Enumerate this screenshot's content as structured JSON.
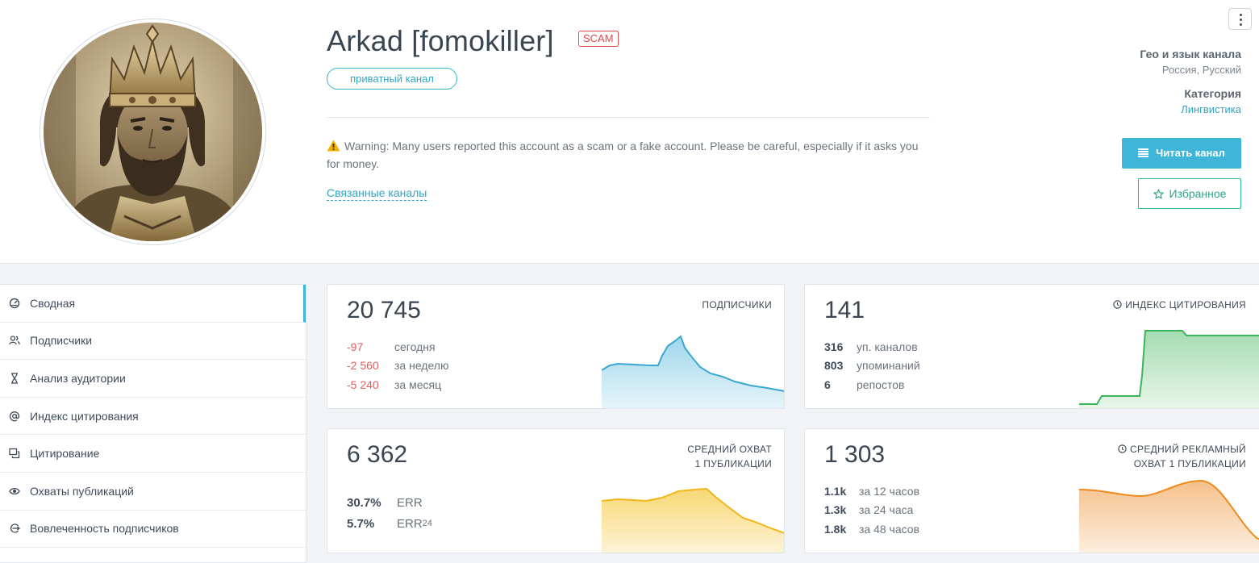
{
  "channel": {
    "title": "Arkad [fomokiller]",
    "scam_badge": "SCAM",
    "private_label": "приватный канал",
    "warning": "Warning: Many users reported this account as a scam or a fake account. Please be careful, especially if it asks you for money.",
    "related_link": "Связанные каналы"
  },
  "side": {
    "geo_label": "Гео и язык канала",
    "geo_value": "Россия, Русский",
    "category_label": "Категория",
    "category_value": "Лингвистика",
    "read_button": "Читать канал",
    "favorite_button": "Избранное"
  },
  "nav": {
    "items": [
      {
        "label": "Сводная",
        "icon": "dashboard-icon"
      },
      {
        "label": "Подписчики",
        "icon": "users-icon"
      },
      {
        "label": "Анализ аудитории",
        "icon": "hourglass-icon"
      },
      {
        "label": "Индекс цитирования",
        "icon": "at-icon"
      },
      {
        "label": "Цитирование",
        "icon": "quote-icon"
      },
      {
        "label": "Охваты публикаций",
        "icon": "eye-icon"
      },
      {
        "label": "Вовлеченность подписчиков",
        "icon": "engagement-icon"
      }
    ]
  },
  "cards": {
    "subscribers": {
      "value": "20 745",
      "label": "ПОДПИСЧИКИ",
      "rows": [
        {
          "num": "-97",
          "text": "сегодня"
        },
        {
          "num": "-2 560",
          "text": "за неделю"
        },
        {
          "num": "-5 240",
          "text": "за месяц"
        }
      ]
    },
    "citation": {
      "value": "141",
      "label": "ИНДЕКС ЦИТИРОВАНИЯ",
      "rows": [
        {
          "num": "316",
          "text": "уп. каналов"
        },
        {
          "num": "803",
          "text": "упоминаний"
        },
        {
          "num": "6",
          "text": "репостов"
        }
      ]
    },
    "reach": {
      "value": "6 362",
      "label_line1": "СРЕДНИЙ ОХВАТ",
      "label_line2": "1 ПУБЛИКАЦИИ",
      "rows": [
        {
          "num": "30.7%",
          "text": "ERR"
        },
        {
          "num": "5.7%",
          "text": "ERR",
          "sub": "24"
        }
      ]
    },
    "ad_reach": {
      "value": "1 303",
      "label_line1": "СРЕДНИЙ РЕКЛАМНЫЙ",
      "label_line2": "ОХВАТ 1 ПУБЛИКАЦИИ",
      "rows": [
        {
          "num": "1.1k",
          "text": "за 12 часов"
        },
        {
          "num": "1.3k",
          "text": "за 24 часа"
        },
        {
          "num": "1.8k",
          "text": "за 48 часов"
        }
      ]
    }
  },
  "colors": {
    "accent": "#3fb6d7",
    "scam": "#e0464a",
    "negative": "#e25e5e",
    "spark_blue": "#3aa8d0",
    "spark_green": "#3cb45a",
    "spark_yellow": "#f2b61a",
    "spark_orange": "#ef8a1c"
  }
}
